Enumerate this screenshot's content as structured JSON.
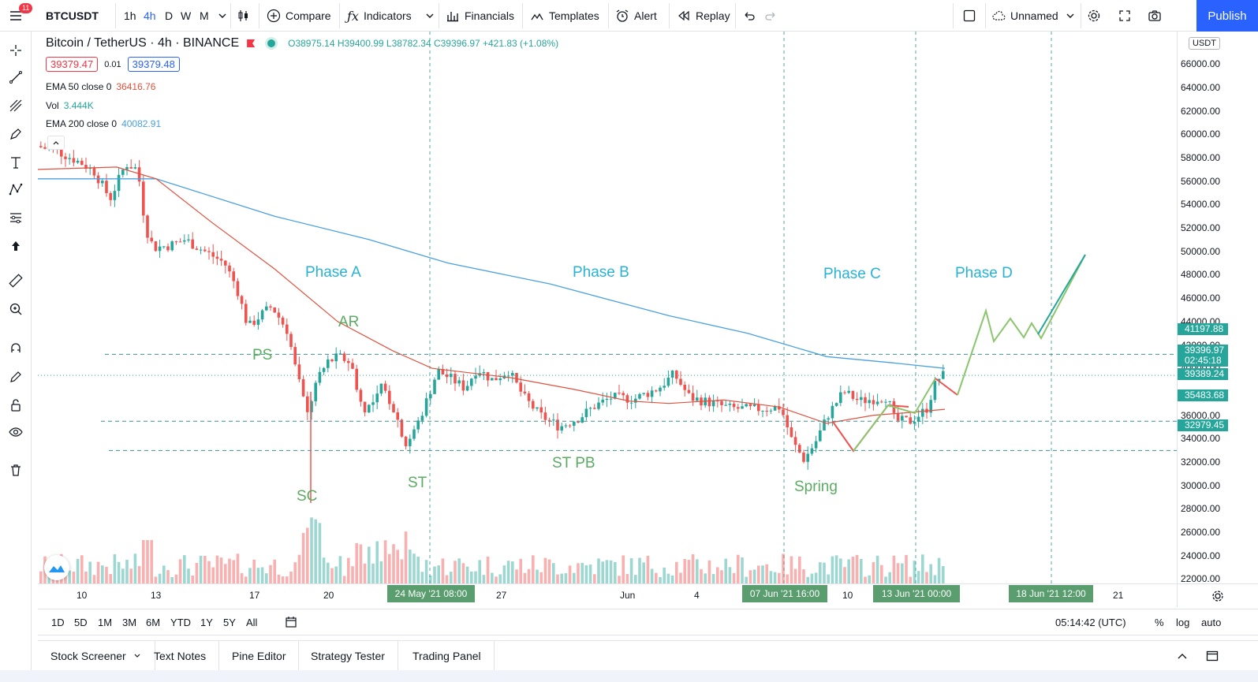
{
  "toolbar": {
    "menu_badge": "11",
    "symbol": "BTCUSDT",
    "intervals": [
      "1h",
      "4h",
      "D",
      "W",
      "M"
    ],
    "active_interval": "4h",
    "compare": "Compare",
    "indicators": "Indicators",
    "financials": "Financials",
    "templates": "Templates",
    "alert": "Alert",
    "replay": "Replay",
    "layout_name": "Unnamed",
    "publish": "Publish"
  },
  "legend": {
    "title": "Bitcoin / TetherUS · 4h · BINANCE",
    "ohlc": "O38975.14 H39400.99 L38782.34 C39396.97 +421.83 (+1.08%)",
    "sell_price": "39379.47",
    "spread": "0.01",
    "buy_price": "39379.48",
    "ema50_name": "EMA 50 close 0",
    "ema50_value": "36416.76",
    "vol_name": "Vol",
    "vol_value": "3.444K",
    "ema200_name": "EMA 200 close 0",
    "ema200_value": "40082.91"
  },
  "annotations": {
    "phase_a": "Phase A",
    "phase_b": "Phase B",
    "phase_c": "Phase C",
    "phase_d": "Phase D",
    "ps": "PS",
    "ar": "AR",
    "sc": "SC",
    "st": "ST",
    "st_pb": "ST PB",
    "spring": "Spring"
  },
  "price_axis": {
    "currency": "USDT",
    "ticks": [
      "66000.00",
      "64000.00",
      "62000.00",
      "60000.00",
      "58000.00",
      "56000.00",
      "54000.00",
      "52000.00",
      "50000.00",
      "48000.00",
      "46000.00",
      "44000.00",
      "42000.00",
      "40000.00",
      "36000.00",
      "34000.00",
      "32000.00",
      "30000.00",
      "28000.00",
      "26000.00",
      "24000.00",
      "22000.00"
    ],
    "badges": [
      {
        "value": "41197.88",
        "color": "#26a69a"
      },
      {
        "value": "39396.97",
        "color": "#26a69a"
      },
      {
        "value": "02:45:18",
        "color": "#26a69a"
      },
      {
        "value": "39389.24",
        "color": "#26a69a"
      },
      {
        "value": "35483.68",
        "color": "#26a69a"
      },
      {
        "value": "32979.45",
        "color": "#26a69a"
      }
    ]
  },
  "time_axis": {
    "ticks": [
      "10",
      "13",
      "17",
      "20",
      "27",
      "Jun",
      "4",
      "10",
      "21"
    ],
    "highlights": [
      "24 May '21   08:00",
      "07 Jun '21   16:00",
      "13 Jun '21   00:00",
      "18 Jun '21   12:00"
    ]
  },
  "range_bar": {
    "ranges": [
      "1D",
      "5D",
      "1M",
      "3M",
      "6M",
      "YTD",
      "1Y",
      "5Y",
      "All"
    ],
    "clock": "05:14:42 (UTC)",
    "percent": "%",
    "log": "log",
    "auto": "auto"
  },
  "bottom_tabs": [
    "Stock Screener",
    "Text Notes",
    "Pine Editor",
    "Strategy Tester",
    "Trading Panel"
  ],
  "colors": {
    "up": "#26a69a",
    "down": "#ef5350",
    "ema50": "#e0513f",
    "ema200": "#4aa0e0",
    "phase": "#28b3d6",
    "event": "#5cab62",
    "accent": "#2962ff"
  }
}
